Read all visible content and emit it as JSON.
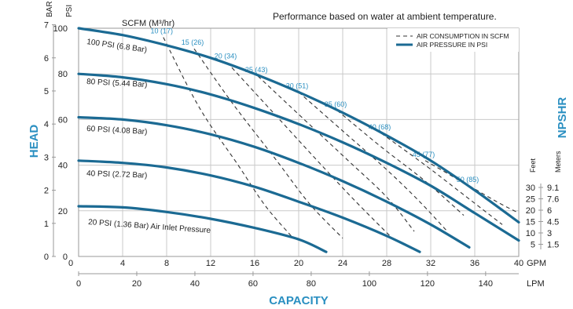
{
  "chart_data": {
    "type": "line",
    "title": "Performance based on water at ambient temperature.",
    "ylabel": "HEAD",
    "xlabel": "CAPACITY",
    "y_units": {
      "bar": "BAR",
      "psi": "PSI"
    },
    "x_units": {
      "gpm": "GPM",
      "lpm": "LPM"
    },
    "scfm_label": "SCFM (M³/hr)",
    "npshr_label": "NPSHR",
    "npshr_units": {
      "feet": "Feet",
      "meters": "Meters"
    },
    "npshr_ticks": [
      {
        "feet": "30",
        "meters": "9.1"
      },
      {
        "feet": "25",
        "meters": "7.6"
      },
      {
        "feet": "20",
        "meters": "6"
      },
      {
        "feet": "15",
        "meters": "4.5"
      },
      {
        "feet": "10",
        "meters": "3"
      },
      {
        "feet": "5",
        "meters": "1.5"
      }
    ],
    "legend": [
      {
        "label": "AIR CONSUMPTION IN SCFM",
        "style": "dashed"
      },
      {
        "label": "AIR PRESSURE IN PSI",
        "style": "solid"
      }
    ],
    "legend_position": "top-right",
    "xlim": [
      0,
      40
    ],
    "ylim": [
      0,
      100
    ],
    "x_ticks_gpm": [
      0,
      4,
      8,
      12,
      16,
      20,
      24,
      28,
      32,
      36,
      40
    ],
    "x_ticks_lpm": [
      0,
      20,
      40,
      60,
      80,
      100,
      120,
      140
    ],
    "y_ticks_psi": [
      0,
      20,
      40,
      60,
      80,
      100
    ],
    "y_ticks_bar": [
      0,
      1,
      2,
      3,
      4,
      5,
      6,
      7
    ],
    "grid": true,
    "colors": {
      "pressure": "#1b6a93",
      "label_blue": "#2a8fc1",
      "grid": "#c9c9c9",
      "dash": "#333333",
      "text": "#222222"
    },
    "pressure_series": [
      {
        "label": "100 PSI (6.8 Bar)",
        "points": [
          [
            0,
            100
          ],
          [
            4,
            97
          ],
          [
            8,
            92.5
          ],
          [
            12,
            87
          ],
          [
            16,
            80
          ],
          [
            20,
            72
          ],
          [
            24,
            63
          ],
          [
            28,
            53
          ],
          [
            32,
            42
          ],
          [
            36,
            29
          ],
          [
            40,
            15
          ]
        ]
      },
      {
        "label": "80 PSI (5.44 Bar)",
        "points": [
          [
            0,
            80
          ],
          [
            4,
            78.5
          ],
          [
            8,
            75.5
          ],
          [
            12,
            71
          ],
          [
            16,
            65
          ],
          [
            20,
            58
          ],
          [
            24,
            50
          ],
          [
            28,
            41
          ],
          [
            32,
            31
          ],
          [
            36,
            19
          ],
          [
            40,
            7
          ]
        ]
      },
      {
        "label": "60 PSI (4.08 Bar)",
        "points": [
          [
            0,
            61
          ],
          [
            4,
            60
          ],
          [
            8,
            57.5
          ],
          [
            12,
            53.5
          ],
          [
            16,
            48
          ],
          [
            20,
            41
          ],
          [
            24,
            33
          ],
          [
            28,
            24
          ],
          [
            32,
            14
          ],
          [
            35.5,
            4
          ]
        ]
      },
      {
        "label": "40 PSI (2.72 Bar)",
        "points": [
          [
            0,
            42
          ],
          [
            4,
            41
          ],
          [
            8,
            39
          ],
          [
            12,
            35.5
          ],
          [
            16,
            30.5
          ],
          [
            20,
            24
          ],
          [
            24,
            17
          ],
          [
            28,
            9
          ],
          [
            31,
            2
          ]
        ]
      },
      {
        "label": "20 PSI (1.36 Bar) Air Inlet Pressure",
        "points": [
          [
            0,
            22
          ],
          [
            4,
            21.5
          ],
          [
            8,
            19.5
          ],
          [
            12,
            16.5
          ],
          [
            16,
            12.5
          ],
          [
            20,
            7.5
          ],
          [
            22.5,
            2
          ]
        ]
      }
    ],
    "air_consumption_series": [
      {
        "label": "10 (17)",
        "points": [
          [
            7.7,
            96
          ],
          [
            11,
            65
          ],
          [
            14.5,
            40
          ],
          [
            17,
            22
          ],
          [
            19.5,
            8
          ]
        ]
      },
      {
        "label": "15 (26)",
        "points": [
          [
            10.5,
            91
          ],
          [
            14,
            67
          ],
          [
            18,
            42
          ],
          [
            21,
            23
          ],
          [
            24,
            8
          ]
        ]
      },
      {
        "label": "20 (34)",
        "points": [
          [
            13.5,
            85
          ],
          [
            17.5,
            64
          ],
          [
            21.5,
            43
          ],
          [
            25,
            25
          ],
          [
            28.5,
            8
          ]
        ]
      },
      {
        "label": "25 (43)",
        "points": [
          [
            16.3,
            79
          ],
          [
            20.5,
            60
          ],
          [
            24.5,
            42
          ],
          [
            28,
            26
          ],
          [
            30.5,
            11
          ]
        ]
      },
      {
        "label": "30 (51)",
        "points": [
          [
            20,
            72
          ],
          [
            24,
            55
          ],
          [
            28,
            38
          ],
          [
            31,
            24
          ],
          [
            33.5,
            11
          ]
        ]
      },
      {
        "label": "35 (60)",
        "points": [
          [
            23.5,
            64
          ],
          [
            27.5,
            48
          ],
          [
            31.5,
            33
          ],
          [
            35,
            18
          ]
        ]
      },
      {
        "label": "40 (68)",
        "points": [
          [
            27.5,
            54
          ],
          [
            31.5,
            40
          ],
          [
            35,
            27
          ],
          [
            38.5,
            14
          ]
        ]
      },
      {
        "label": "45 (77)",
        "points": [
          [
            31.5,
            42
          ],
          [
            35,
            32
          ],
          [
            38.5,
            20
          ],
          [
            40,
            15
          ]
        ]
      },
      {
        "label": "50 (85)",
        "points": [
          [
            35.5,
            31
          ],
          [
            38,
            24
          ],
          [
            40,
            19
          ]
        ]
      }
    ]
  }
}
